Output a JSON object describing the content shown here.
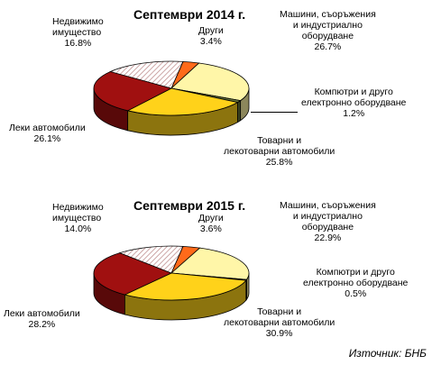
{
  "source": "Източник: БНБ",
  "colors": {
    "machinery": "#fff6a8",
    "computers": "#6b7a3c",
    "trucks": "#ffd21a",
    "cars": "#a01010",
    "realestate": "#ffffff",
    "other": "#ff6a1a",
    "realestate_hatch": "#c09090"
  },
  "chart_data": [
    {
      "type": "pie",
      "title": "Септември 2014 г.",
      "slices": [
        {
          "key": "other",
          "label": "Други",
          "value": 3.4,
          "value_label": "3.4%"
        },
        {
          "key": "machinery",
          "label": "Машини, съоръжения\nи индустриално\nоборудване",
          "value": 26.7,
          "value_label": "26.7%"
        },
        {
          "key": "computers",
          "label": "Компютри и друго\nелектронно оборудване",
          "value": 1.2,
          "value_label": "1.2%"
        },
        {
          "key": "trucks",
          "label": "Товарни и\nлекотоварни автомобили",
          "value": 25.8,
          "value_label": "25.8%"
        },
        {
          "key": "cars",
          "label": "Леки автомобили",
          "value": 26.1,
          "value_label": "26.1%"
        },
        {
          "key": "realestate",
          "label": "Недвижимо\nимущество",
          "value": 16.8,
          "value_label": "16.8%"
        }
      ]
    },
    {
      "type": "pie",
      "title": "Септември 2015 г.",
      "slices": [
        {
          "key": "other",
          "label": "Други",
          "value": 3.6,
          "value_label": "3.6%"
        },
        {
          "key": "machinery",
          "label": "Машини, съоръжения\nи индустриално\nоборудване",
          "value": 22.9,
          "value_label": "22.9%"
        },
        {
          "key": "computers",
          "label": "Компютри и друго\nелектронно оборудване",
          "value": 0.5,
          "value_label": "0.5%"
        },
        {
          "key": "trucks",
          "label": "Товарни и\nлекотоварни автомобили",
          "value": 30.9,
          "value_label": "30.9%"
        },
        {
          "key": "cars",
          "label": "Леки автомобили",
          "value": 28.2,
          "value_label": "28.2%"
        },
        {
          "key": "realestate",
          "label": "Недвижимо\nимущество",
          "value": 14.0,
          "value_label": "14.0%"
        }
      ]
    }
  ]
}
